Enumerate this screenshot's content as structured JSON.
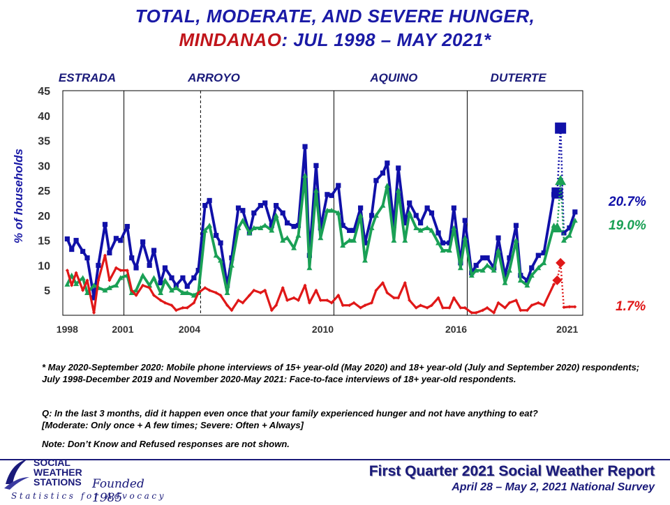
{
  "title": {
    "line1": "TOTAL, MODERATE, AND SEVERE HUNGER,",
    "line2_red": "MINDANAO",
    "line2_rest": ": JUL 1998 – MAY 2021*"
  },
  "footnotes": {
    "mode": "* May 2020-September 2020: Mobile phone interviews of 15+ year-old (May 2020) and 18+ year-old (July and September 2020) respondents; July 1998-December 2019 and November 2020-May 2021: Face-to-face interviews of 18+ year-old respondents.",
    "question": "Q: In the last 3 months, did it happen even once that your family experienced hunger and not have anything to eat?",
    "definition": "[Moderate: Only once + A few times; Severe: Often + Always]",
    "note": "Note: Don’t Know and Refused responses are not shown."
  },
  "logo": {
    "line1": "SOCIAL",
    "line2": "WEATHER",
    "line3": "STATIONS",
    "founded": "Founded 1985",
    "tagline": "Statistics for Advocacy"
  },
  "report": {
    "title": "First Quarter 2021 Social Weather Report",
    "subtitle": "April 28 – May 2, 2021 National Survey"
  },
  "colors": {
    "total": "#1010a8",
    "moderate": "#1aa055",
    "severe": "#e01818",
    "title_blue": "#1a1aa6",
    "title_red": "#c0141a"
  },
  "chart_data": {
    "type": "line",
    "ylabel": "% of households",
    "ylim": [
      0,
      45
    ],
    "yticks": [
      5,
      10,
      15,
      20,
      25,
      30,
      35,
      40,
      45
    ],
    "xlim": [
      1998.3,
      2021.7
    ],
    "xticks": [
      {
        "x": 1998.5,
        "label": "1998"
      },
      {
        "x": 2001.0,
        "label": "2001"
      },
      {
        "x": 2004.0,
        "label": "2004"
      },
      {
        "x": 2010.0,
        "label": "2010"
      },
      {
        "x": 2016.0,
        "label": "2016"
      },
      {
        "x": 2021.0,
        "label": "2021"
      }
    ],
    "administrations": [
      {
        "label": "ESTRADA",
        "x": 1999.4
      },
      {
        "label": "ARROYO",
        "x": 2005.1
      },
      {
        "label": "AQUINO",
        "x": 2013.2
      },
      {
        "label": "DUTERTE",
        "x": 2018.8
      }
    ],
    "boundaries": [
      {
        "x": 2001.05,
        "style": "solid"
      },
      {
        "x": 2004.5,
        "style": "dashed"
      },
      {
        "x": 2010.5,
        "style": "solid"
      },
      {
        "x": 2016.5,
        "style": "solid"
      }
    ],
    "x": [
      1998.5,
      1998.7,
      1998.9,
      1999.2,
      1999.4,
      1999.7,
      1999.9,
      2000.2,
      2000.4,
      2000.7,
      2000.9,
      2001.2,
      2001.4,
      2001.6,
      2001.9,
      2002.2,
      2002.4,
      2002.7,
      2002.9,
      2003.2,
      2003.4,
      2003.7,
      2003.9,
      2004.2,
      2004.4,
      2004.7,
      2004.9,
      2005.2,
      2005.4,
      2005.7,
      2005.9,
      2006.2,
      2006.4,
      2006.7,
      2006.9,
      2007.2,
      2007.4,
      2007.7,
      2007.9,
      2008.2,
      2008.4,
      2008.7,
      2008.9,
      2009.2,
      2009.4,
      2009.7,
      2009.9,
      2010.2,
      2010.4,
      2010.7,
      2010.9,
      2011.2,
      2011.4,
      2011.7,
      2011.9,
      2012.2,
      2012.4,
      2012.7,
      2012.9,
      2013.2,
      2013.4,
      2013.7,
      2013.9,
      2014.2,
      2014.4,
      2014.7,
      2014.9,
      2015.2,
      2015.4,
      2015.7,
      2015.9,
      2016.2,
      2016.4,
      2016.7,
      2016.9,
      2017.2,
      2017.4,
      2017.7,
      2017.9,
      2018.2,
      2018.4,
      2018.7,
      2018.9,
      2019.2,
      2019.4,
      2019.7,
      2019.95,
      2020.4,
      2020.55,
      2020.7,
      2020.85,
      2021.1,
      2021.35
    ],
    "series": [
      {
        "name": "Total",
        "color": "#1010a8",
        "marker": "square",
        "values": [
          15.3,
          13.2,
          15.0,
          12.8,
          11.5,
          3.5,
          10.0,
          18.2,
          12.5,
          15.4,
          15.0,
          17.8,
          11.5,
          9.5,
          14.7,
          10.0,
          13.0,
          6.5,
          9.5,
          7.5,
          6.0,
          7.5,
          5.8,
          7.5,
          9.0,
          22.0,
          23.0,
          16.0,
          14.5,
          6.0,
          11.5,
          21.5,
          21.0,
          16.5,
          20.5,
          22.0,
          22.5,
          18.0,
          22.0,
          20.5,
          18.5,
          17.8,
          18.0,
          33.8,
          12.0,
          30.0,
          17.5,
          24.2,
          24.0,
          26.0,
          18.0,
          17.0,
          17.0,
          21.5,
          14.5,
          20.0,
          27.0,
          28.5,
          30.5,
          18.0,
          29.5,
          18.5,
          22.5,
          20.0,
          18.5,
          21.5,
          20.5,
          16.5,
          14.5,
          14.5,
          21.5,
          10.5,
          19.0,
          8.5,
          10.0,
          11.5,
          11.5,
          9.5,
          15.5,
          8.0,
          11.5,
          18.0,
          8.0,
          7.0,
          9.5,
          12.0,
          12.5,
          24.2,
          24.5,
          37.5,
          16.5,
          17.5,
          20.7
        ]
      },
      {
        "name": "Moderate",
        "color": "#1aa055",
        "marker": "triangle",
        "values": [
          6.2,
          8.0,
          6.3,
          7.5,
          4.5,
          6.0,
          5.5,
          5.0,
          5.5,
          6.0,
          7.5,
          8.0,
          4.5,
          5.0,
          8.0,
          6.0,
          7.5,
          4.5,
          7.0,
          5.0,
          5.5,
          4.5,
          4.5,
          4.0,
          4.5,
          17.0,
          18.0,
          12.0,
          11.0,
          4.5,
          10.0,
          17.5,
          19.0,
          16.5,
          17.5,
          17.5,
          18.0,
          17.0,
          20.0,
          15.0,
          15.5,
          13.5,
          16.0,
          28.0,
          9.5,
          25.0,
          15.5,
          21.0,
          21.0,
          20.5,
          14.0,
          15.0,
          15.0,
          20.0,
          11.0,
          17.5,
          20.0,
          22.0,
          26.0,
          15.0,
          25.0,
          15.0,
          20.5,
          17.5,
          17.0,
          17.5,
          17.0,
          14.5,
          13.0,
          13.0,
          17.5,
          9.5,
          15.5,
          8.0,
          9.0,
          9.0,
          10.0,
          9.0,
          13.0,
          6.5,
          9.0,
          15.0,
          7.0,
          6.0,
          8.0,
          9.5,
          10.5,
          18.0,
          17.5,
          27.0,
          15.0,
          16.0,
          19.0
        ]
      },
      {
        "name": "Severe",
        "color": "#e01818",
        "marker": "diamond",
        "values": [
          9.0,
          6.0,
          8.5,
          5.0,
          7.0,
          0.5,
          7.0,
          12.0,
          7.0,
          9.5,
          9.0,
          9.0,
          5.0,
          4.0,
          6.0,
          5.5,
          4.0,
          3.0,
          2.5,
          2.0,
          1.0,
          1.5,
          1.5,
          2.5,
          4.5,
          5.5,
          5.0,
          4.5,
          4.0,
          2.0,
          1.0,
          3.0,
          2.5,
          4.0,
          5.0,
          4.5,
          5.0,
          1.0,
          2.0,
          5.5,
          3.0,
          3.5,
          3.0,
          6.0,
          2.5,
          5.0,
          3.0,
          3.0,
          2.5,
          4.0,
          2.0,
          2.0,
          2.5,
          1.5,
          2.0,
          2.5,
          5.0,
          6.5,
          4.5,
          3.5,
          3.5,
          6.5,
          3.0,
          1.5,
          2.0,
          1.5,
          2.0,
          3.5,
          1.5,
          1.5,
          3.5,
          1.5,
          1.5,
          0.5,
          0.5,
          1.0,
          1.5,
          0.5,
          2.5,
          1.5,
          2.5,
          3.0,
          1.0,
          1.0,
          2.0,
          2.5,
          2.0,
          6.2,
          7.0,
          10.5,
          1.6,
          1.7,
          1.7
        ]
      }
    ],
    "end_labels": [
      {
        "series": "Total",
        "text": "20.7%"
      },
      {
        "series": "Moderate",
        "text": "19.0%"
      },
      {
        "series": "Severe",
        "text": "1.7%"
      }
    ]
  }
}
